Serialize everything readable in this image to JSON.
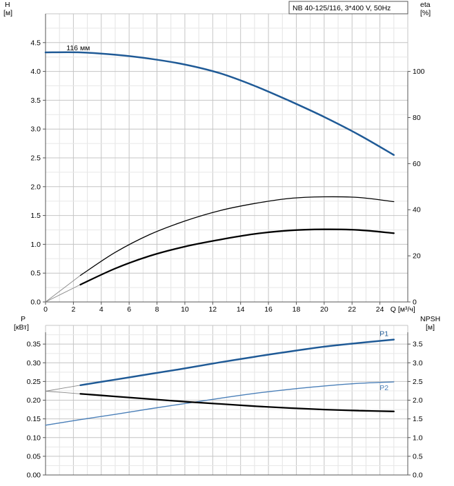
{
  "title": "NB 40-125/116, 3*400 V, 50Hz",
  "colors": {
    "blue": "#1f5a96",
    "light_blue": "#4a7fb8",
    "black": "#000000",
    "grid": "#c8c8c8",
    "axis": "#555555"
  },
  "chart_data": [
    {
      "type": "line",
      "panel": "top",
      "xlabel": "Q [м³/ч]",
      "ylabel": [
        "H",
        "[м]"
      ],
      "y2label": [
        "eta",
        "[%]"
      ],
      "xlim": [
        0,
        26
      ],
      "ylim": [
        0,
        5.0
      ],
      "y2lim": [
        0,
        125
      ],
      "xticks": [
        0,
        2,
        4,
        6,
        8,
        10,
        12,
        14,
        16,
        18,
        20,
        22,
        24
      ],
      "yticks": [
        "0.0",
        "0.5",
        "1.0",
        "1.5",
        "2.0",
        "2.5",
        "3.0",
        "3.5",
        "4.0",
        "4.5"
      ],
      "y2ticks": [
        0,
        20,
        40,
        60,
        80,
        100
      ],
      "curve_label": "116 мм",
      "series": [
        {
          "axis": "y",
          "color": "#1f5a96",
          "width": 2.5,
          "x": [
            0,
            2.5,
            5,
            7.5,
            10,
            12.5,
            15,
            17.5,
            20,
            22.5,
            25
          ],
          "y": [
            4.33,
            4.33,
            4.29,
            4.22,
            4.12,
            3.97,
            3.75,
            3.49,
            3.21,
            2.9,
            2.55
          ]
        },
        {
          "axis": "y2",
          "color": "#000000",
          "width": 1.3,
          "x": [
            2.5,
            5,
            7.5,
            10,
            12.5,
            15,
            17.5,
            20,
            22.5,
            25
          ],
          "y": [
            11.5,
            21.5,
            29.3,
            35.1,
            39.6,
            42.7,
            44.9,
            45.6,
            45.3,
            43.5
          ]
        },
        {
          "axis": "y2",
          "color": "#000000",
          "width": 2.3,
          "x": [
            2.5,
            5,
            7.5,
            10,
            12.5,
            15,
            17.5,
            20,
            22.5,
            25
          ],
          "y": [
            7.5,
            14.5,
            20.0,
            24.0,
            27.0,
            29.5,
            31.0,
            31.5,
            31.2,
            29.8
          ]
        }
      ],
      "extrapolations": [
        {
          "axis": "y2",
          "color": "#888888",
          "x": [
            0,
            2.5
          ],
          "y": [
            0,
            11.5
          ]
        },
        {
          "axis": "y2",
          "color": "#888888",
          "x": [
            0,
            2.5
          ],
          "y": [
            0,
            7.5
          ]
        }
      ]
    },
    {
      "type": "line",
      "panel": "bottom",
      "ylabel": [
        "P",
        "[кВт]"
      ],
      "y2label": [
        "NPSH",
        "[м]"
      ],
      "xlim": [
        0,
        26
      ],
      "ylim": [
        0,
        0.4
      ],
      "y2lim": [
        0,
        4.0
      ],
      "yticks": [
        "0.00",
        "0.05",
        "0.10",
        "0.15",
        "0.20",
        "0.25",
        "0.30",
        "0.35"
      ],
      "y2ticks": [
        "0.0",
        "0.5",
        "1.0",
        "1.5",
        "2.0",
        "2.5",
        "3.0",
        "3.5"
      ],
      "series": [
        {
          "name": "P1",
          "axis": "y",
          "color": "#1f5a96",
          "width": 2.5,
          "x": [
            2.5,
            5,
            7.5,
            10,
            12.5,
            15,
            17.5,
            20,
            22.5,
            25
          ],
          "y": [
            0.24,
            0.255,
            0.27,
            0.285,
            0.301,
            0.316,
            0.33,
            0.343,
            0.353,
            0.362
          ]
        },
        {
          "name": "P2",
          "axis": "y",
          "color": "#4a7fb8",
          "width": 1.4,
          "x": [
            0,
            2.5,
            5,
            7.5,
            10,
            12.5,
            15,
            17.5,
            20,
            22.5,
            25
          ],
          "y": [
            0.133,
            0.148,
            0.162,
            0.177,
            0.191,
            0.205,
            0.218,
            0.229,
            0.238,
            0.245,
            0.249
          ]
        },
        {
          "axis": "y2",
          "color": "#000000",
          "width": 2.3,
          "x": [
            2.5,
            5,
            7.5,
            10,
            12.5,
            15,
            17.5,
            20,
            22.5,
            25
          ],
          "y": [
            2.17,
            2.1,
            2.03,
            1.96,
            1.9,
            1.84,
            1.79,
            1.75,
            1.72,
            1.7
          ]
        }
      ],
      "extrapolations": [
        {
          "axis": "y",
          "color": "#888888",
          "x": [
            0,
            2.5
          ],
          "y": [
            0.224,
            0.24
          ]
        },
        {
          "axis": "y2",
          "color": "#888888",
          "x": [
            0,
            2.5
          ],
          "y": [
            2.24,
            2.17
          ]
        },
        {
          "axis": "y",
          "color": "#4a7fb8",
          "x": [
            0,
            2.5
          ],
          "y": [
            0.133,
            0.148
          ]
        }
      ]
    }
  ]
}
